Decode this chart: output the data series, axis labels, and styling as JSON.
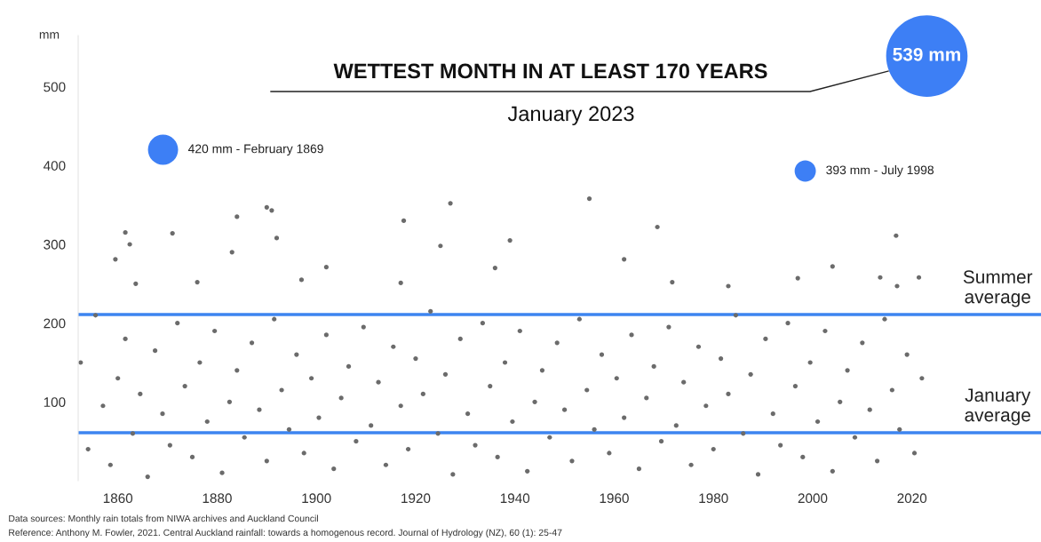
{
  "chart_data": {
    "type": "scatter",
    "title": "WETTEST MONTH IN AT LEAST 170 YEARS",
    "subtitle": "January 2023",
    "ylabel": "mm",
    "xlim": [
      1852,
      2046
    ],
    "xticks": [
      1860,
      1880,
      1900,
      1920,
      1940,
      1960,
      1980,
      2000,
      2020
    ],
    "ylim": [
      0,
      565
    ],
    "yticks": [
      100,
      200,
      300,
      400,
      500
    ],
    "grid": false,
    "series": [
      {
        "color": "#6b6b6b",
        "x": [
          1852.5,
          1854,
          1855.5,
          1857,
          1858.5,
          1860,
          1861.5,
          1863,
          1864.5,
          1866,
          1867.5,
          1869,
          1870.5,
          1872,
          1873.5,
          1875,
          1876.5,
          1878,
          1879.5,
          1881,
          1882.5,
          1884,
          1885.5,
          1887,
          1888.5,
          1890,
          1891.5,
          1893,
          1894.5,
          1896,
          1897.5,
          1899,
          1900.5,
          1902,
          1903.5,
          1905,
          1906.5,
          1908,
          1909.5,
          1911,
          1912.5,
          1914,
          1915.5,
          1917,
          1918.5,
          1920,
          1921.5,
          1923,
          1924.5,
          1926,
          1927.5,
          1929,
          1930.5,
          1932,
          1933.5,
          1935,
          1936.5,
          1938,
          1939.5,
          1941,
          1942.5,
          1944,
          1945.5,
          1947,
          1948.5,
          1950,
          1951.5,
          1953,
          1954.5,
          1956,
          1957.5,
          1959,
          1960.5,
          1962,
          1963.5,
          1965,
          1966.5,
          1968,
          1969.5,
          1971,
          1972.5,
          1974,
          1975.5,
          1977,
          1978.5,
          1980,
          1981.5,
          1983,
          1984.5,
          1986,
          1987.5,
          1989,
          1990.5,
          1992,
          1993.5,
          1995,
          1996.5,
          1998,
          1999.5,
          2001,
          2002.5,
          2004,
          2005.5,
          2007,
          2008.5,
          2010,
          2011.5,
          2013,
          2014.5,
          2016,
          2017.5,
          2019,
          2020.5,
          2022,
          1859.5,
          1861.5,
          1862.4,
          1863.6,
          1871,
          1876,
          1884,
          1883,
          1890,
          1891,
          1892,
          1897,
          1902,
          1917.6,
          1917,
          1925,
          1927,
          1939,
          1936,
          1955,
          1962,
          1968.7,
          1971.7,
          1983,
          1997,
          2004,
          2016.8,
          2017,
          2013.6,
          2021.4
        ],
        "values": [
          150,
          40,
          210,
          95,
          20,
          130,
          180,
          60,
          110,
          5,
          165,
          85,
          45,
          200,
          120,
          30,
          150,
          75,
          190,
          10,
          100,
          140,
          55,
          175,
          90,
          25,
          205,
          115,
          65,
          160,
          35,
          130,
          80,
          185,
          15,
          105,
          145,
          50,
          195,
          70,
          125,
          20,
          170,
          95,
          40,
          155,
          110,
          215,
          60,
          135,
          8,
          180,
          85,
          45,
          200,
          120,
          30,
          150,
          75,
          190,
          12,
          100,
          140,
          55,
          175,
          90,
          25,
          205,
          115,
          65,
          160,
          35,
          130,
          80,
          185,
          15,
          105,
          145,
          50,
          195,
          70,
          125,
          20,
          170,
          95,
          40,
          155,
          110,
          210,
          60,
          135,
          8,
          180,
          85,
          45,
          200,
          120,
          30,
          150,
          75,
          190,
          12,
          100,
          140,
          55,
          175,
          90,
          25,
          205,
          115,
          65,
          160,
          35,
          130,
          281,
          315,
          300,
          250,
          314,
          252,
          335,
          290,
          347,
          343,
          308,
          255,
          271,
          330,
          251,
          298,
          352,
          305,
          270,
          358,
          281,
          322,
          252,
          247,
          257,
          272,
          311,
          247,
          258,
          258
        ]
      },
      {
        "type": "bubble",
        "color": "#3d7ff5",
        "x": [
          1869.1,
          1998.5,
          2023.0
        ],
        "values": [
          420,
          393,
          539
        ],
        "sizes": [
          0.137,
          0.068,
          1
        ]
      }
    ],
    "ref_lines": [
      {
        "axis": "y",
        "value": 211,
        "label": "Summer\naverage",
        "color": "#3d85f0",
        "line_style": "solid"
      },
      {
        "axis": "y",
        "value": 61,
        "label": "January\naverage",
        "color": "#3d85f0",
        "line_style": "solid"
      }
    ],
    "annotations": [
      {
        "text": "420 mm - February 1869",
        "x": 1869.1,
        "y": 420
      },
      {
        "text": "393 mm - July 1998",
        "x": 1998.5,
        "y": 393
      },
      {
        "text": "539 mm",
        "x": 2023.0,
        "y": 539
      },
      "Data sources: Monthly rain totals from NIWA archives and Auckland Council",
      "Reference: Anthony M. Fowler, 2021. Central Auckland rainfall: towards a homogenous record. Journal of Hydrology (NZ), 60 (1): 25-47"
    ]
  }
}
